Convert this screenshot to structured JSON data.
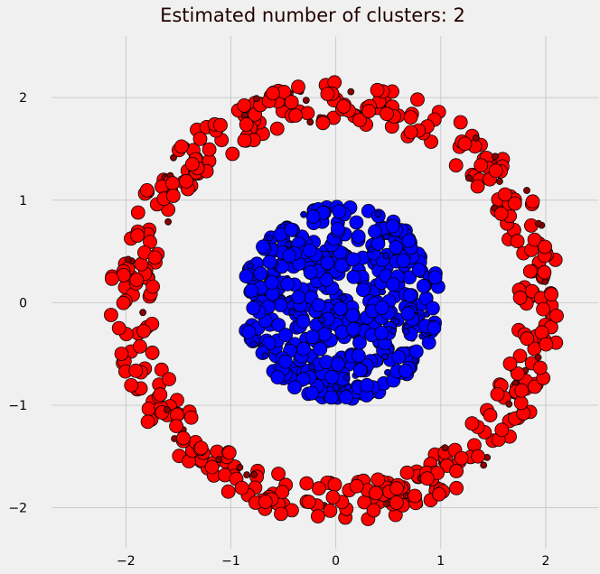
{
  "chart_data": {
    "type": "scatter",
    "title": "Estimated number of clusters: 2",
    "xlabel": "",
    "ylabel": "",
    "xlim": [
      -2.7,
      2.5
    ],
    "ylim": [
      -2.4,
      2.6
    ],
    "xticks": [
      -2,
      -1,
      0,
      1,
      2
    ],
    "yticks": [
      -2,
      -1,
      0,
      1,
      2
    ],
    "xtick_labels": [
      "−2",
      "−1",
      "0",
      "1",
      "2"
    ],
    "ytick_labels": [
      "−2",
      "−1",
      "0",
      "1",
      "2"
    ],
    "grid": true,
    "background": "#f0f0f0",
    "plot_background": "#f0f0f0",
    "series": [
      {
        "color": "#ff0000",
        "shape": "ring",
        "center": [
          0,
          0
        ],
        "radius_range": [
          1.75,
          2.15
        ],
        "count": 500,
        "core_marker_size": 14,
        "outlier_marker_size": 6,
        "outlier_color": "#8b0000"
      },
      {
        "color": "#0000ff",
        "shape": "disk",
        "center": [
          0.05,
          0.0
        ],
        "radius_range": [
          0,
          0.95
        ],
        "count": 500,
        "core_marker_size": 14,
        "outlier_marker_size": 6,
        "outlier_color": "#0000cc"
      }
    ]
  }
}
